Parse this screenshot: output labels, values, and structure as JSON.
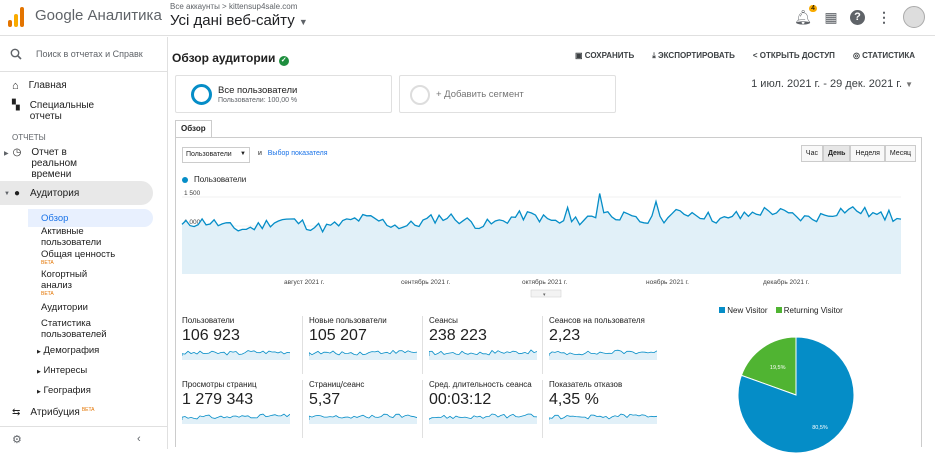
{
  "header": {
    "brand": "Google Аналитика",
    "account_path": "Все аккаунты > kittensup4sale.com",
    "property": "Усі дані веб-сайту",
    "notification_count": "4"
  },
  "sidebar": {
    "search_placeholder": "Поиск в отчетах и Справк",
    "home": "Главная",
    "custom_reports": "Специальные отчеты",
    "reports_section": "ОТЧЕТЫ",
    "realtime": "Отчет в реальном времени",
    "audience": "Аудитория",
    "audience_items": [
      {
        "label": "Обзор"
      },
      {
        "label": "Активные пользователи"
      },
      {
        "label": "Общая ценность",
        "badge": "BETA"
      },
      {
        "label": "Когортный анализ",
        "badge": "BETA"
      },
      {
        "label": "Аудитории"
      },
      {
        "label": "Статистика пользователей"
      },
      {
        "label": "Демография"
      },
      {
        "label": "Интересы"
      },
      {
        "label": "География"
      }
    ],
    "attribution": "Атрибуция",
    "attribution_badge": "BETA"
  },
  "page": {
    "title": "Обзор аудитории",
    "actions": [
      "СОХРАНИТЬ",
      "ЭКСПОРТИРОВАТЬ",
      "ОТКРЫТЬ ДОСТУП",
      "СТАТИСТИКА"
    ],
    "segment_name": "Все пользователи",
    "segment_sub": "Пользователи: 100,00 %",
    "add_segment": "+ Добавить сегмент",
    "date_range": "1 июл. 2021 г. - 29 дек. 2021 г.",
    "tab": "Обзор",
    "metric_select": "Пользователи",
    "and": "и",
    "choose_metric": "Выбор показателя",
    "granularity": [
      "Час",
      "День",
      "Неделя",
      "Месяц"
    ],
    "selected_granularity": "День"
  },
  "chart_data": [
    {
      "type": "line",
      "series_name": "Пользователи",
      "y_ticks": [
        "1 500",
        "1 000",
        "500"
      ],
      "x_ticks": [
        "август 2021 г.",
        "сентябрь 2021 г.",
        "октябрь 2021 г.",
        "ноябрь 2021 г.",
        "декабрь 2021 г."
      ],
      "color": "#058dc7"
    },
    {
      "type": "pie",
      "labels": [
        "New Visitor",
        "Returning Visitor"
      ],
      "values": [
        80.5,
        19.5
      ],
      "value_labels": [
        "80,5%",
        "19,5%"
      ],
      "colors": [
        "#058dc7",
        "#50b432"
      ]
    }
  ],
  "metrics": [
    {
      "label": "Пользователи",
      "value": "106 923"
    },
    {
      "label": "Новые пользователи",
      "value": "105 207"
    },
    {
      "label": "Сеансы",
      "value": "238 223"
    },
    {
      "label": "Сеансов на пользователя",
      "value": "2,23"
    },
    {
      "label": "Просмотры страниц",
      "value": "1 279 343"
    },
    {
      "label": "Страниц/сеанс",
      "value": "5,37"
    },
    {
      "label": "Сред. длительность сеанса",
      "value": "00:03:12"
    },
    {
      "label": "Показатель отказов",
      "value": "4,35 %"
    }
  ]
}
